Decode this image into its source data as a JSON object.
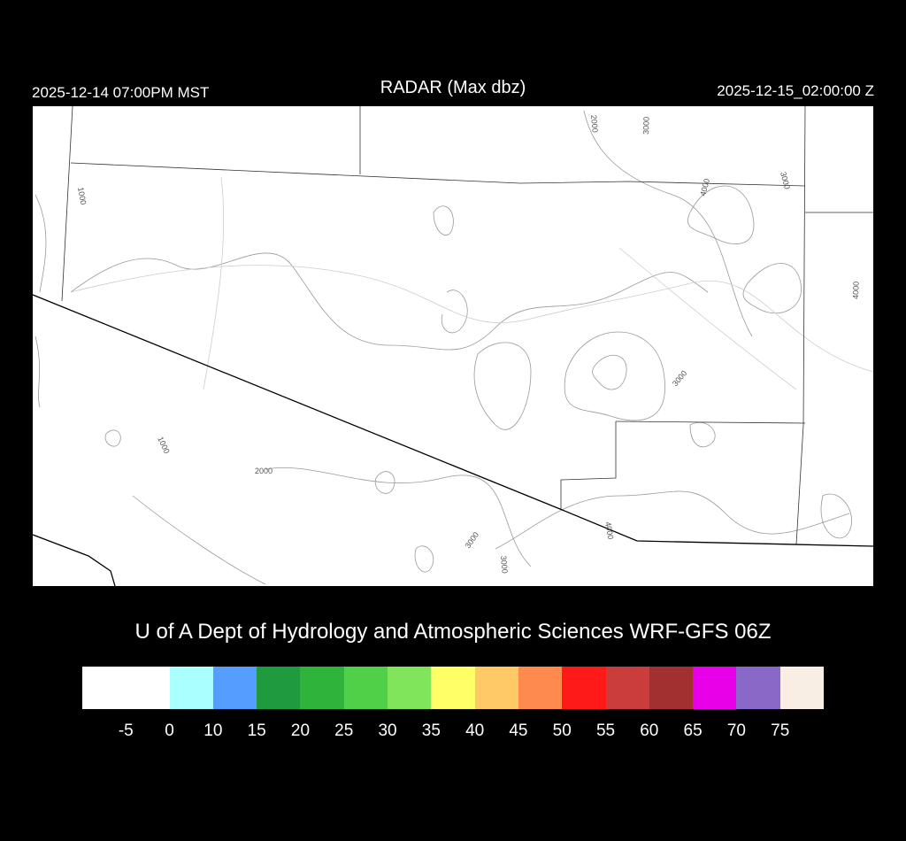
{
  "header": {
    "local_time": "2025-12-14 07:00PM MST",
    "title": "RADAR (Max dbz)",
    "utc_time": "2025-12-15_02:00:00 Z"
  },
  "credit": "U of A Dept of Hydrology and Atmospheric Sciences WRF-GFS 06Z",
  "contour_labels": [
    "1000",
    "1000",
    "2000",
    "2000",
    "3000",
    "3000",
    "4000",
    "4000",
    "3000",
    "4000",
    "3000",
    "3000"
  ],
  "colorbar": {
    "colors": [
      "#ffffff",
      "#aaffff",
      "#559eff",
      "#1f9a3f",
      "#2fb33a",
      "#50cf48",
      "#80e55a",
      "#ffff66",
      "#ffca66",
      "#ff8a4d",
      "#ff1a1a",
      "#cb3c3c",
      "#a33030",
      "#e800e8",
      "#8a68c8",
      "#f8eee4"
    ],
    "ticks": [
      "-5",
      "0",
      "10",
      "15",
      "20",
      "25",
      "30",
      "35",
      "40",
      "45",
      "50",
      "55",
      "60",
      "65",
      "70",
      "75"
    ]
  }
}
